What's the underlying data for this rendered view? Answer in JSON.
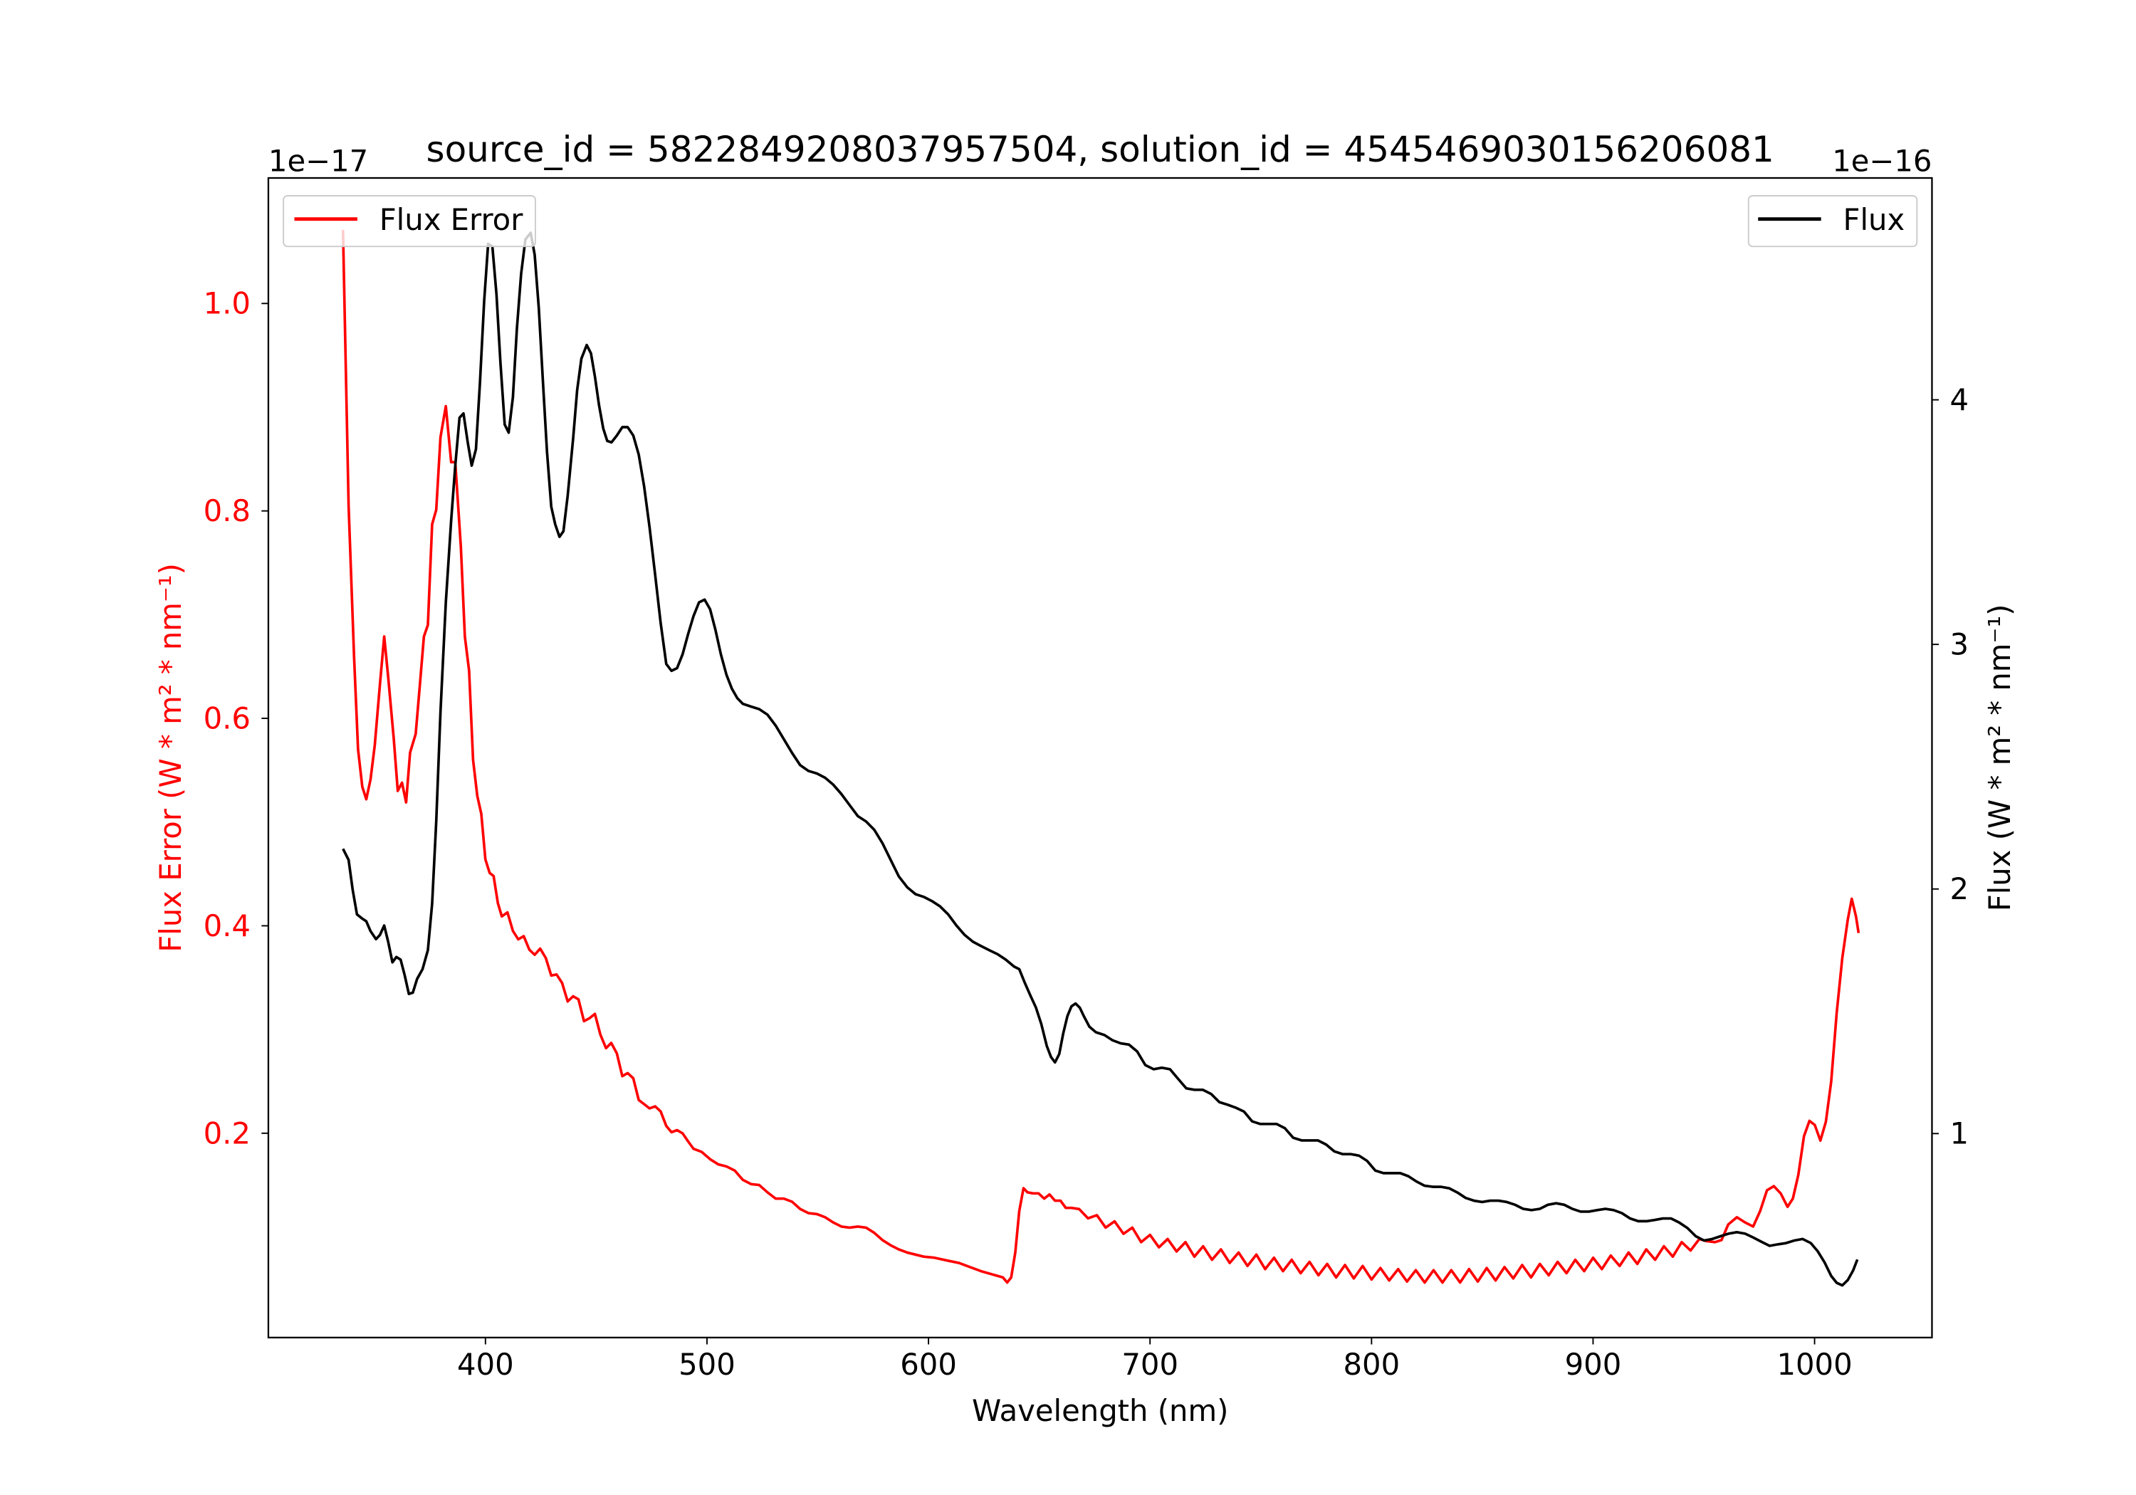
{
  "chart_data": {
    "type": "line",
    "title": "source_id = 5822849208037957504, solution_id = 4545469030156206081",
    "xlabel": "Wavelength (nm)",
    "xlim": [
      302,
      1053
    ],
    "xticks": [
      400,
      500,
      600,
      700,
      800,
      900,
      1000
    ],
    "grid": false,
    "colors": {
      "flux_error": "#ff0000",
      "flux": "#000000"
    },
    "left_axis": {
      "ylabel": "Flux Error (W * m² * nm⁻¹)",
      "offset_text": "1e−17",
      "ylim": [
        0.003,
        1.121
      ],
      "yticks": [
        0.2,
        0.4,
        0.6,
        0.8,
        1.0
      ],
      "ytick_labels": [
        "0.2",
        "0.4",
        "0.6",
        "0.8",
        "1.0"
      ],
      "legend": {
        "label": "Flux Error",
        "placement": "upper-left"
      }
    },
    "right_axis": {
      "ylabel": "Flux (W * m² * nm⁻¹)",
      "offset_text": "1e−16",
      "ylim": [
        0.166,
        4.907
      ],
      "yticks": [
        1,
        2,
        3,
        4
      ],
      "ytick_labels": [
        "1",
        "2",
        "3",
        "4"
      ],
      "legend": {
        "label": "Flux",
        "placement": "upper-right"
      }
    },
    "series": [
      {
        "name": "Flux Error",
        "axis": "left",
        "unit_scale": "1e-17",
        "x": [
          335.7,
          338.2,
          340.7,
          342.5,
          344.4,
          346.2,
          348.1,
          350,
          352.4,
          354.3,
          356.1,
          358.6,
          360.4,
          362.3,
          364.2,
          366,
          368.5,
          370.4,
          372.2,
          374,
          375.9,
          377.8,
          379.7,
          382.1,
          384.5,
          386.4,
          388.9,
          390.7,
          392.6,
          394.4,
          396.3,
          398.1,
          400,
          401.9,
          403.7,
          405.6,
          407.4,
          409.9,
          412.4,
          414.8,
          417.3,
          419.8,
          422.2,
          424.7,
          427.2,
          429.7,
          432.1,
          434.6,
          437.1,
          439.6,
          442,
          444.5,
          447,
          449.4,
          451.9,
          454.4,
          456.8,
          459.3,
          461.8,
          464.2,
          466.7,
          469.2,
          471.6,
          474.1,
          476.6,
          479.1,
          481.6,
          484,
          486.5,
          489,
          491.5,
          493.9,
          497.6,
          501.4,
          505.1,
          508.8,
          512.5,
          516.2,
          519.9,
          523.6,
          527.3,
          531,
          534.7,
          538.4,
          542.1,
          545.8,
          549.6,
          553.3,
          557,
          560.7,
          564.4,
          568.1,
          571.8,
          575.5,
          579.2,
          582.9,
          586.6,
          590.4,
          594.1,
          597.8,
          602.7,
          608.9,
          613.8,
          618.7,
          623.7,
          628.7,
          633.6,
          635.5,
          637.3,
          639.2,
          641,
          642.9,
          644.7,
          647.2,
          649.7,
          652.2,
          654.6,
          657.1,
          659.6,
          662,
          664.5,
          668,
          672,
          676,
          680,
          684,
          688,
          692,
          696,
          700,
          704,
          708,
          712,
          716,
          720,
          724,
          728,
          732,
          736,
          740,
          744,
          748,
          752,
          756,
          760,
          764,
          768,
          772,
          776,
          780,
          784,
          788,
          792,
          796,
          800,
          804,
          808,
          812,
          816,
          820,
          824,
          828,
          832,
          836,
          840,
          844,
          848,
          852,
          856,
          860,
          864,
          868,
          872,
          876,
          880,
          884,
          888,
          892,
          896,
          900,
          904,
          908,
          912,
          916,
          920,
          924,
          928,
          932,
          936,
          940,
          944,
          948,
          951,
          955,
          958,
          961,
          964.9,
          968.6,
          972.3,
          975.4,
          978.5,
          981.6,
          984.7,
          987.8,
          990.2,
          992.7,
          995.2,
          997.7,
          1000.1,
          1002.6,
          1005.1,
          1007.5,
          1010,
          1012.5,
          1015,
          1016.8,
          1018.7,
          1019.9
        ],
        "y": [
          1.071,
          0.805,
          0.659,
          0.57,
          0.534,
          0.522,
          0.541,
          0.574,
          0.633,
          0.679,
          0.64,
          0.58,
          0.53,
          0.538,
          0.519,
          0.567,
          0.585,
          0.633,
          0.679,
          0.69,
          0.787,
          0.801,
          0.871,
          0.901,
          0.847,
          0.847,
          0.765,
          0.679,
          0.646,
          0.56,
          0.525,
          0.508,
          0.464,
          0.451,
          0.448,
          0.422,
          0.409,
          0.413,
          0.395,
          0.387,
          0.39,
          0.377,
          0.372,
          0.378,
          0.369,
          0.352,
          0.353,
          0.345,
          0.327,
          0.332,
          0.329,
          0.308,
          0.311,
          0.315,
          0.295,
          0.282,
          0.287,
          0.277,
          0.255,
          0.258,
          0.253,
          0.232,
          0.228,
          0.224,
          0.226,
          0.221,
          0.207,
          0.201,
          0.203,
          0.2,
          0.192,
          0.185,
          0.182,
          0.175,
          0.17,
          0.168,
          0.164,
          0.155,
          0.151,
          0.15,
          0.143,
          0.137,
          0.137,
          0.134,
          0.127,
          0.123,
          0.122,
          0.119,
          0.114,
          0.11,
          0.109,
          0.11,
          0.109,
          0.104,
          0.097,
          0.092,
          0.088,
          0.085,
          0.083,
          0.081,
          0.08,
          0.077,
          0.075,
          0.071,
          0.067,
          0.064,
          0.061,
          0.056,
          0.061,
          0.085,
          0.125,
          0.147,
          0.143,
          0.142,
          0.142,
          0.137,
          0.141,
          0.135,
          0.135,
          0.128,
          0.128,
          0.127,
          0.118,
          0.121,
          0.109,
          0.115,
          0.103,
          0.109,
          0.095,
          0.102,
          0.09,
          0.098,
          0.086,
          0.095,
          0.081,
          0.091,
          0.078,
          0.088,
          0.075,
          0.085,
          0.072,
          0.083,
          0.069,
          0.08,
          0.067,
          0.078,
          0.065,
          0.076,
          0.063,
          0.074,
          0.061,
          0.073,
          0.06,
          0.072,
          0.059,
          0.07,
          0.058,
          0.069,
          0.057,
          0.068,
          0.056,
          0.068,
          0.056,
          0.068,
          0.056,
          0.069,
          0.057,
          0.07,
          0.058,
          0.071,
          0.06,
          0.073,
          0.061,
          0.074,
          0.063,
          0.076,
          0.065,
          0.078,
          0.067,
          0.08,
          0.069,
          0.082,
          0.072,
          0.085,
          0.074,
          0.088,
          0.078,
          0.091,
          0.081,
          0.095,
          0.087,
          0.098,
          0.096,
          0.095,
          0.097,
          0.112,
          0.119,
          0.114,
          0.11,
          0.125,
          0.145,
          0.149,
          0.142,
          0.129,
          0.137,
          0.16,
          0.197,
          0.212,
          0.208,
          0.193,
          0.211,
          0.25,
          0.316,
          0.369,
          0.406,
          0.426,
          0.409,
          0.393
        ]
      },
      {
        "name": "Flux",
        "axis": "right",
        "unit_scale": "1e-16",
        "x": [
          335.7,
          338.2,
          340.1,
          342,
          344.4,
          346.2,
          348.1,
          350.6,
          352.4,
          354.3,
          356.1,
          358,
          359.8,
          361.7,
          363.5,
          365.4,
          367.2,
          369.1,
          371.6,
          374,
          375.9,
          377.8,
          379.7,
          382.1,
          384.5,
          386.4,
          388.3,
          390.1,
          392,
          393.8,
          395.7,
          397.5,
          399.4,
          401.2,
          403.1,
          405,
          406.8,
          408.7,
          410.5,
          412.4,
          414.2,
          416.1,
          418,
          420.4,
          422.2,
          424.1,
          426,
          427.8,
          429.7,
          431.5,
          433.4,
          435.2,
          437.1,
          439.6,
          441.4,
          443.3,
          445.7,
          447.6,
          449.4,
          451.3,
          453.2,
          455,
          456.9,
          459.3,
          461.8,
          464.2,
          466.7,
          469.2,
          471.6,
          474.1,
          476.6,
          479.1,
          481.6,
          484,
          486.5,
          489,
          491.5,
          493.9,
          496.4,
          498.9,
          501.4,
          503.8,
          506.3,
          508.8,
          511.2,
          513.7,
          516.2,
          519.9,
          523.6,
          527.3,
          531,
          534.7,
          538.4,
          542.1,
          545.8,
          549.6,
          553.3,
          557,
          560.7,
          564.4,
          568.1,
          571.8,
          575.5,
          579.2,
          582.9,
          586.6,
          590.4,
          594.1,
          597.8,
          601.5,
          605.2,
          608.9,
          612.6,
          616.3,
          620.1,
          623.7,
          627.4,
          631.2,
          634.9,
          638.6,
          641,
          643.5,
          646,
          648.5,
          650.9,
          653.4,
          655.3,
          657.1,
          659,
          660.8,
          662.7,
          664.5,
          666.4,
          668.3,
          670.1,
          672.6,
          675.6,
          679.4,
          683.1,
          686.8,
          690.5,
          694.2,
          697.9,
          701.6,
          705.3,
          709,
          712.7,
          716.4,
          720.1,
          723.8,
          727.6,
          731.3,
          735,
          738.7,
          742.4,
          746.1,
          749.8,
          753.5,
          757.2,
          760.9,
          764.6,
          768.4,
          772.1,
          775.8,
          779.5,
          783.2,
          786.9,
          790.6,
          794.3,
          798,
          801.7,
          805.4,
          809.1,
          812.9,
          816.6,
          820.3,
          824,
          827.7,
          831.4,
          835.1,
          838.8,
          842.5,
          846.2,
          849.9,
          853.6,
          857.4,
          861.1,
          864.8,
          868.5,
          872.2,
          875.9,
          879.6,
          883.3,
          887,
          890.7,
          894.4,
          898.1,
          901.9,
          905.6,
          909.3,
          913,
          916.7,
          920.4,
          924.1,
          927.8,
          931.5,
          935.2,
          938.9,
          942.6,
          946.4,
          950.1,
          953.8,
          957.5,
          961.2,
          964.9,
          968.6,
          972.3,
          976,
          979.7,
          983.4,
          987.1,
          990.9,
          994.6,
          998.3,
          1001.4,
          1004.5,
          1007.5,
          1010,
          1012.5,
          1015,
          1017.4,
          1019.3
        ],
        "y": [
          2.164,
          2.119,
          1.996,
          1.896,
          1.879,
          1.868,
          1.828,
          1.795,
          1.812,
          1.851,
          1.784,
          1.7,
          1.722,
          1.711,
          1.649,
          1.571,
          1.576,
          1.632,
          1.672,
          1.75,
          1.94,
          2.276,
          2.724,
          3.172,
          3.507,
          3.731,
          3.927,
          3.944,
          3.826,
          3.731,
          3.798,
          4.067,
          4.403,
          4.638,
          4.627,
          4.431,
          4.151,
          3.899,
          3.866,
          4.011,
          4.291,
          4.515,
          4.655,
          4.683,
          4.593,
          4.375,
          4.067,
          3.787,
          3.563,
          3.491,
          3.44,
          3.463,
          3.608,
          3.843,
          4.039,
          4.168,
          4.224,
          4.19,
          4.095,
          3.978,
          3.882,
          3.832,
          3.826,
          3.854,
          3.888,
          3.888,
          3.854,
          3.776,
          3.647,
          3.479,
          3.284,
          3.088,
          2.92,
          2.892,
          2.903,
          2.959,
          3.043,
          3.116,
          3.172,
          3.183,
          3.144,
          3.06,
          2.959,
          2.875,
          2.819,
          2.78,
          2.757,
          2.746,
          2.735,
          2.713,
          2.668,
          2.612,
          2.556,
          2.506,
          2.483,
          2.472,
          2.455,
          2.427,
          2.388,
          2.343,
          2.298,
          2.276,
          2.242,
          2.187,
          2.119,
          2.052,
          2.007,
          1.979,
          1.968,
          1.951,
          1.929,
          1.896,
          1.851,
          1.812,
          1.784,
          1.767,
          1.75,
          1.733,
          1.711,
          1.683,
          1.672,
          1.616,
          1.565,
          1.515,
          1.448,
          1.358,
          1.313,
          1.291,
          1.325,
          1.409,
          1.481,
          1.52,
          1.532,
          1.515,
          1.481,
          1.437,
          1.414,
          1.403,
          1.381,
          1.369,
          1.364,
          1.336,
          1.28,
          1.263,
          1.269,
          1.263,
          1.224,
          1.185,
          1.179,
          1.179,
          1.162,
          1.129,
          1.118,
          1.106,
          1.09,
          1.05,
          1.039,
          1.039,
          1.039,
          1.022,
          0.983,
          0.972,
          0.972,
          0.972,
          0.955,
          0.927,
          0.916,
          0.916,
          0.91,
          0.888,
          0.849,
          0.838,
          0.838,
          0.838,
          0.826,
          0.804,
          0.787,
          0.782,
          0.782,
          0.776,
          0.759,
          0.737,
          0.726,
          0.72,
          0.726,
          0.726,
          0.72,
          0.709,
          0.692,
          0.687,
          0.692,
          0.709,
          0.715,
          0.709,
          0.692,
          0.681,
          0.681,
          0.687,
          0.692,
          0.687,
          0.675,
          0.653,
          0.642,
          0.642,
          0.647,
          0.653,
          0.653,
          0.636,
          0.614,
          0.58,
          0.563,
          0.569,
          0.58,
          0.591,
          0.597,
          0.591,
          0.575,
          0.558,
          0.541,
          0.547,
          0.552,
          0.563,
          0.569,
          0.552,
          0.519,
          0.474,
          0.418,
          0.39,
          0.379,
          0.401,
          0.44,
          0.485
        ]
      }
    ]
  }
}
